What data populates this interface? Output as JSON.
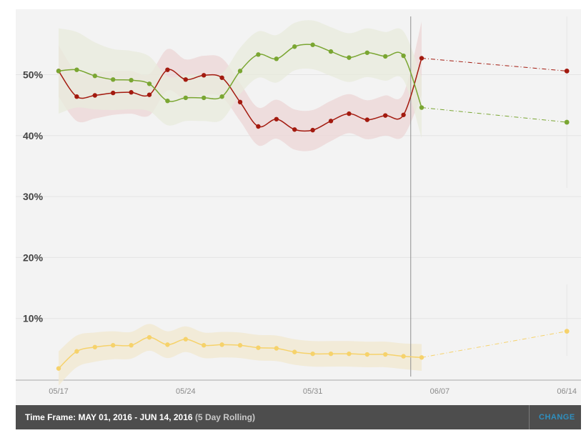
{
  "chart_data": {
    "type": "line",
    "title": "",
    "xlabel": "",
    "ylabel": "",
    "ylim": [
      0,
      61
    ],
    "grid": true,
    "y_ticks": [
      {
        "value": 10,
        "label": "10%"
      },
      {
        "value": 20,
        "label": "20%"
      },
      {
        "value": 30,
        "label": "30%"
      },
      {
        "value": 40,
        "label": "40%"
      },
      {
        "value": 50,
        "label": "50%"
      }
    ],
    "x_ticks": [
      {
        "day": 0,
        "label": "05/17"
      },
      {
        "day": 7,
        "label": "05/24"
      },
      {
        "day": 14,
        "label": "05/31"
      },
      {
        "day": 21,
        "label": "06/07"
      },
      {
        "day": 28,
        "label": "06/14"
      }
    ],
    "current_marker_day": 19.4,
    "series": [
      {
        "name": "red",
        "color": "#a31a0f",
        "band_color": "#ecd5d5",
        "band_half_width": [
          4.2,
          4.0,
          3.8,
          3.6,
          3.5,
          3.4,
          3.4,
          3.3,
          3.2,
          3.2,
          3.1,
          3.1,
          3.2,
          3.3,
          3.3,
          3.3,
          3.2,
          3.2,
          3.3,
          3.5,
          6.0
        ],
        "values": [
          50.6,
          46.4,
          46.6,
          47.0,
          47.1,
          46.7,
          50.8,
          49.2,
          49.9,
          49.5,
          45.5,
          41.5,
          42.7,
          41.0,
          40.9,
          42.4,
          43.6,
          42.6,
          43.3,
          43.4,
          52.7
        ],
        "projection": [
          [
            20,
            52.7
          ],
          [
            28,
            50.6
          ]
        ]
      },
      {
        "name": "green",
        "color": "#7aa632",
        "band_color": "#e8ebdc",
        "band_half_width": [
          7.0,
          6.2,
          5.5,
          5.0,
          4.8,
          4.5,
          4.0,
          3.8,
          3.8,
          3.8,
          3.8,
          3.8,
          3.9,
          3.9,
          4.0,
          4.0,
          4.0,
          4.0,
          4.0,
          4.0,
          5.0
        ],
        "values": [
          50.6,
          50.8,
          49.8,
          49.2,
          49.1,
          48.5,
          45.7,
          46.2,
          46.2,
          46.4,
          50.6,
          53.3,
          52.6,
          54.6,
          54.9,
          53.8,
          52.8,
          53.6,
          53.0,
          53.1,
          44.6
        ],
        "projection": [
          [
            20,
            44.6
          ],
          [
            28,
            42.2
          ]
        ]
      },
      {
        "name": "yellow",
        "color": "#f6d26b",
        "band_color": "#f1e8cf",
        "band_half_width": [
          2.8,
          2.6,
          2.4,
          2.3,
          2.2,
          2.2,
          2.2,
          2.1,
          2.1,
          2.1,
          2.1,
          2.1,
          2.1,
          2.1,
          2.1,
          2.1,
          2.1,
          2.1,
          2.1,
          2.1,
          2.2
        ],
        "values": [
          1.8,
          4.6,
          5.3,
          5.6,
          5.6,
          6.9,
          5.7,
          6.6,
          5.6,
          5.7,
          5.6,
          5.2,
          5.1,
          4.5,
          4.2,
          4.2,
          4.2,
          4.1,
          4.1,
          3.8,
          3.6
        ],
        "projection": [
          [
            20,
            3.6
          ],
          [
            28,
            7.9
          ]
        ]
      }
    ]
  },
  "footer": {
    "timeframe_label": "Time Frame: MAY 01, 2016 - JUN 14, 2016",
    "rolling_label": "(5 Day Rolling)",
    "change_label": "CHANGE"
  }
}
